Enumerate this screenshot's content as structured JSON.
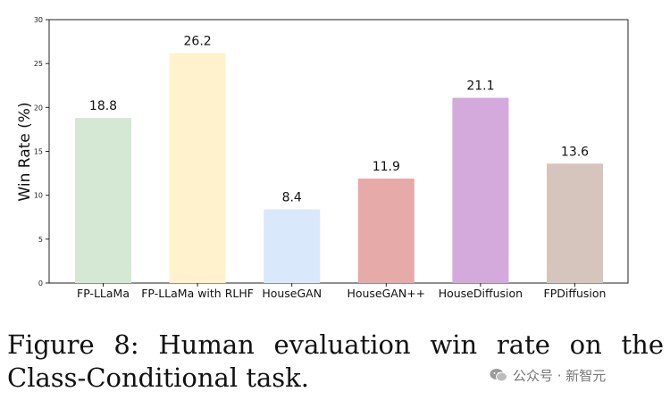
{
  "chart_data": {
    "type": "bar",
    "categories": [
      "FP-LLaMa",
      "FP-LLaMa with RLHF",
      "HouseGAN",
      "HouseGAN++",
      "HouseDiffusion",
      "FPDiffusion"
    ],
    "values": [
      18.8,
      26.2,
      8.4,
      11.9,
      21.1,
      13.6
    ],
    "value_labels": [
      "18.8",
      "26.2",
      "8.4",
      "11.9",
      "21.1",
      "13.6"
    ],
    "colors": [
      "#d5e8d4",
      "#fff2cc",
      "#dae8fc",
      "#e6aaa8",
      "#d4aadc",
      "#d5c5bc"
    ],
    "ylabel": "Win Rate (%)",
    "ylim": [
      0,
      30
    ],
    "yticks": [
      0,
      5,
      10,
      15,
      20,
      25,
      30
    ],
    "grid": false
  },
  "caption": "Figure 8: Human evaluation win rate on the Class-Conditional task.",
  "watermark": {
    "text": "公众号 · 新智元",
    "icon": "wechat-icon"
  }
}
